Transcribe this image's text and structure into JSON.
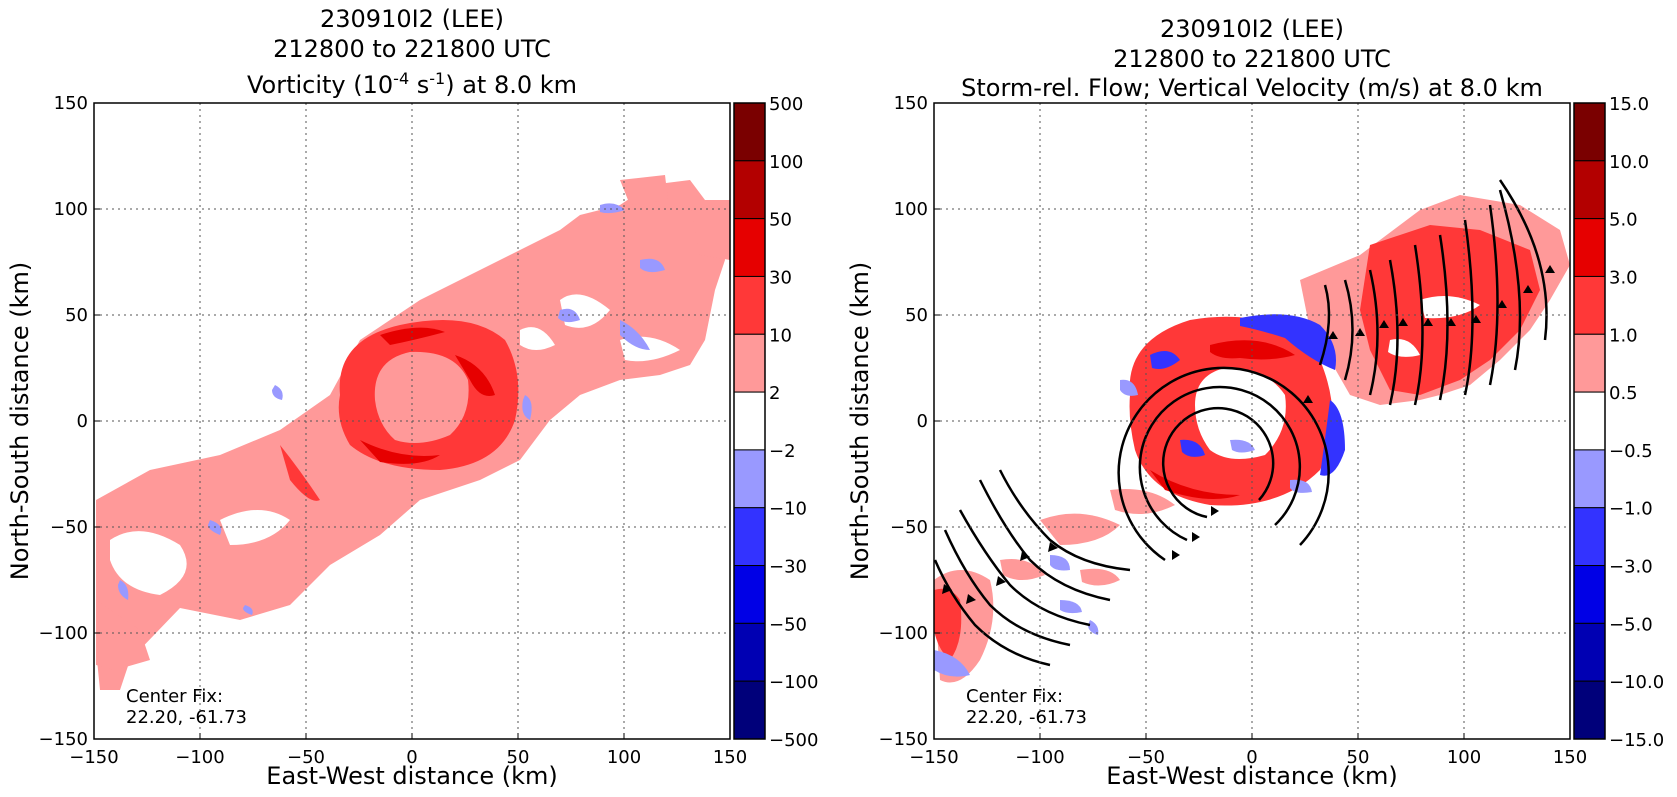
{
  "chart_data": [
    {
      "type": "heatmap",
      "title_lines": [
        "230910I2 (LEE)",
        "212800 to 221800 UTC"
      ],
      "title_var": {
        "prefix": "Vorticity (10",
        "sup1": "-4",
        "mid": " s",
        "sup2": "-1",
        "suffix": ") at 8.0 km"
      },
      "xlabel": "East-West distance (km)",
      "ylabel": "North-South distance (km)",
      "xlim": [
        -150,
        150
      ],
      "ylim": [
        -150,
        150
      ],
      "xticks": [
        -150,
        -100,
        -50,
        0,
        50,
        100,
        150
      ],
      "yticks": [
        -150,
        -100,
        -50,
        0,
        50,
        100,
        150
      ],
      "xtick_labels": [
        "−150",
        "−100",
        "−50",
        "0",
        "50",
        "100",
        "150"
      ],
      "ytick_labels": [
        "−150",
        "−100",
        "−50",
        "0",
        "50",
        "100",
        "150"
      ],
      "grid": true,
      "center_fix_label": "Center Fix:",
      "center_fix_value": "22.20, -61.73",
      "colorbar": {
        "levels": [
          "500",
          "100",
          "50",
          "30",
          "10",
          "2",
          "−2",
          "−10",
          "−30",
          "−50",
          "−100",
          "−500"
        ],
        "colors": [
          "#7a0000",
          "#b30000",
          "#e60000",
          "#ff3838",
          "#ff9999",
          "#ffffff",
          "#9999ff",
          "#3333ff",
          "#0000e6",
          "#0000b3",
          "#00007a"
        ]
      }
    },
    {
      "type": "heatmap",
      "title_lines": [
        "230910I2 (LEE)",
        "212800 to 221800 UTC",
        "Storm-rel. Flow; Vertical Velocity (m/s) at 8.0 km"
      ],
      "xlabel": "East-West distance (km)",
      "ylabel": "North-South distance (km)",
      "xlim": [
        -150,
        150
      ],
      "ylim": [
        -150,
        150
      ],
      "xticks": [
        -150,
        -100,
        -50,
        0,
        50,
        100,
        150
      ],
      "yticks": [
        -150,
        -100,
        -50,
        0,
        50,
        100,
        150
      ],
      "xtick_labels": [
        "−150",
        "−100",
        "−50",
        "0",
        "50",
        "100",
        "150"
      ],
      "ytick_labels": [
        "−150",
        "−100",
        "−50",
        "0",
        "50",
        "100",
        "150"
      ],
      "grid": true,
      "center_fix_label": "Center Fix:",
      "center_fix_value": "22.20, -61.73",
      "colorbar": {
        "levels": [
          "15.0",
          "10.0",
          "5.0",
          "3.0",
          "1.0",
          "0.5",
          "−0.5",
          "−1.0",
          "−3.0",
          "−5.0",
          "−10.0",
          "−15.0"
        ],
        "colors": [
          "#7a0000",
          "#b30000",
          "#e60000",
          "#ff3838",
          "#ff9999",
          "#ffffff",
          "#9999ff",
          "#3333ff",
          "#0000e6",
          "#0000b3",
          "#00007a"
        ]
      },
      "streamlines": true
    }
  ],
  "colors": {
    "light_red": "#ff9999",
    "mid_red": "#ff3838",
    "red": "#e60000",
    "light_blue": "#9999ff",
    "blue": "#3333ff",
    "dark_blue": "#0000e6"
  }
}
